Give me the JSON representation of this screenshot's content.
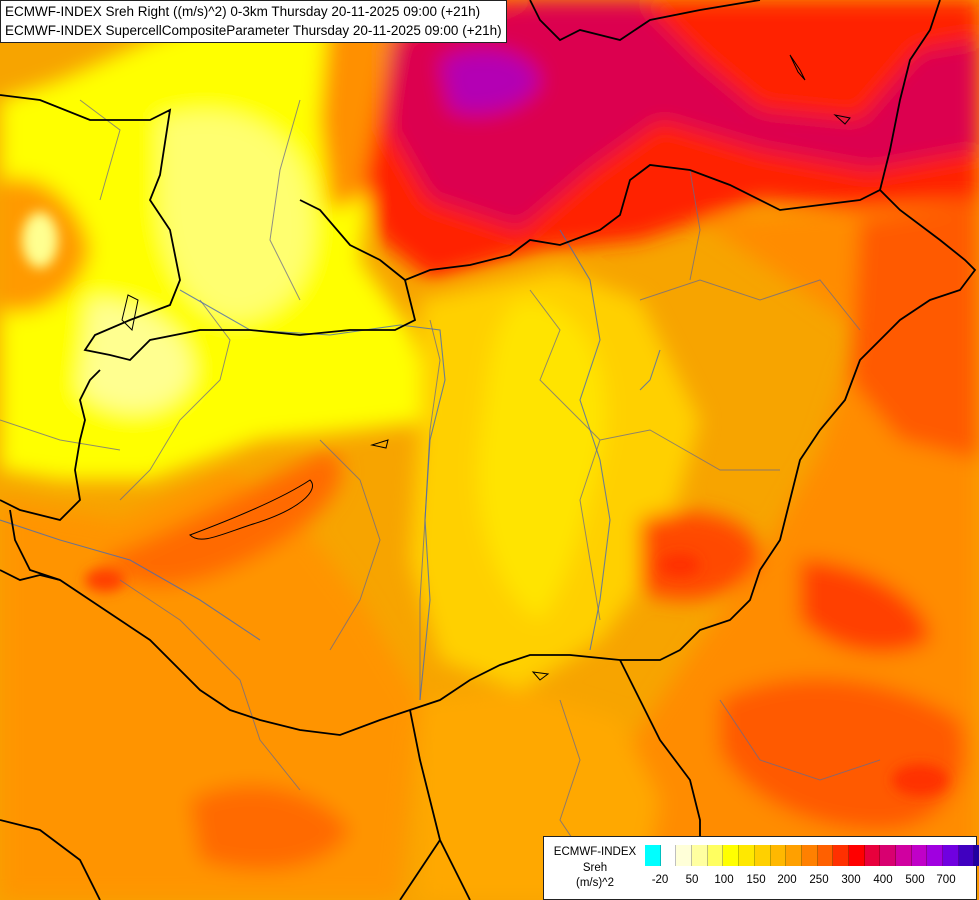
{
  "header": {
    "line1": "ECMWF-INDEX Sreh Right ((m/s)^2) 0-3km Thursday 20-11-2025 09:00 (+21h)",
    "line2": "ECMWF-INDEX SupercellCompositeParameter Thursday 20-11-2025 09:00 (+21h)"
  },
  "legend": {
    "title_line1": "ECMWF-INDEX",
    "title_line2": "Sreh",
    "title_line3": "(m/s)^2",
    "colors": [
      "#00ffff",
      "#ffffff",
      "#ffffd8",
      "#ffffa0",
      "#ffff60",
      "#ffff00",
      "#ffe800",
      "#ffd000",
      "#ffb800",
      "#ffa000",
      "#ff8000",
      "#ff6000",
      "#ff3000",
      "#ff0000",
      "#e8003c",
      "#d80070",
      "#d000a0",
      "#c000c8",
      "#a000e0",
      "#7000e0",
      "#4000c0",
      "#2000a0",
      "#000080"
    ],
    "ticks": [
      "-20",
      "50",
      "100",
      "150",
      "200",
      "250",
      "300",
      "400",
      "500",
      "700"
    ]
  },
  "map_colors": {
    "background": "#f7a400",
    "low": "#ffff00",
    "mid": "#ffc800",
    "high": "#ff7a00",
    "very_high": "#ff1a1a",
    "extreme": "#d8005a",
    "peak": "#a000c8"
  },
  "icons": [
    "country-border",
    "river",
    "region-border",
    "scp-contour"
  ]
}
